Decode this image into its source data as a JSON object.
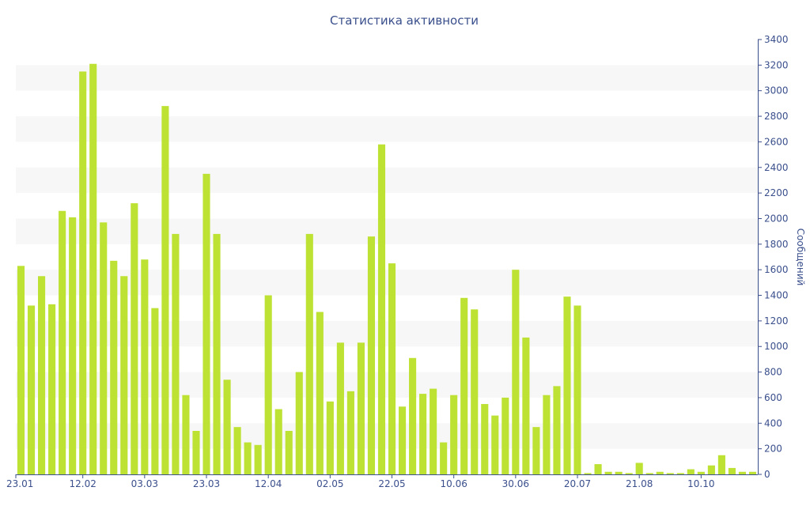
{
  "chart_data": {
    "type": "bar",
    "title": "Статистика активности",
    "ylabel": "Сообщений",
    "xlabel": "",
    "ylim": [
      0,
      3400
    ],
    "y_ticks": [
      0,
      200,
      400,
      600,
      800,
      1000,
      1200,
      1400,
      1600,
      1800,
      2000,
      2200,
      2400,
      2600,
      2800,
      3000,
      3200,
      3400
    ],
    "y_axis_side": "right",
    "x_tick_labels": [
      "23.01",
      "12.02",
      "03.03",
      "23.03",
      "12.04",
      "02.05",
      "22.05",
      "10.06",
      "30.06",
      "20.07",
      "21.08",
      "10.10"
    ],
    "x_tick_positions": [
      0,
      6,
      12,
      18,
      24,
      30,
      36,
      42,
      48,
      54,
      60,
      66
    ],
    "colors": {
      "bar": "#bde234",
      "band": "#f7f7f7",
      "text": "#3a4f8c",
      "axis": "#3a4f8c"
    },
    "values": [
      1630,
      1320,
      1550,
      1330,
      2060,
      2010,
      3150,
      3210,
      1970,
      1670,
      1550,
      2120,
      1680,
      1300,
      2880,
      1880,
      620,
      340,
      2350,
      1880,
      740,
      370,
      250,
      230,
      1400,
      510,
      340,
      800,
      1880,
      1270,
      570,
      1030,
      650,
      1030,
      1860,
      2580,
      1650,
      530,
      910,
      630,
      670,
      250,
      620,
      1380,
      1290,
      550,
      460,
      600,
      1600,
      1070,
      370,
      620,
      690,
      1390,
      1320,
      10,
      80,
      20,
      20,
      10,
      90,
      10,
      20,
      10,
      10,
      40,
      20,
      70,
      150,
      50,
      20,
      20
    ]
  }
}
